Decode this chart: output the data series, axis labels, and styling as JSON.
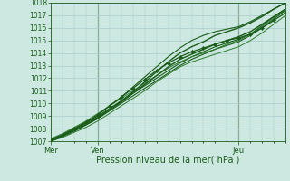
{
  "xlabel": "Pression niveau de la mer( hPa )",
  "ylim": [
    1007,
    1018
  ],
  "xlim": [
    0,
    120
  ],
  "yticks": [
    1007,
    1008,
    1009,
    1010,
    1011,
    1012,
    1013,
    1014,
    1015,
    1016,
    1017,
    1018
  ],
  "xtick_positions": [
    0,
    24,
    96
  ],
  "xtick_labels": [
    "Mer",
    "Ven",
    "Jeu"
  ],
  "vline_positions": [
    24,
    96
  ],
  "bg_color": "#cce8e0",
  "grid_color": "#aacccc",
  "line_color_dark": "#1a5c1a",
  "line_color_mid": "#2d7a2d",
  "series": [
    {
      "x": [
        0,
        6,
        12,
        18,
        24,
        30,
        36,
        42,
        48,
        54,
        60,
        66,
        72,
        78,
        84,
        90,
        96,
        102,
        108,
        114,
        120
      ],
      "y": [
        1007.0,
        1007.4,
        1007.8,
        1008.3,
        1008.8,
        1009.4,
        1010.0,
        1010.6,
        1011.2,
        1011.8,
        1012.4,
        1013.0,
        1013.5,
        1013.9,
        1014.3,
        1014.6,
        1014.9,
        1015.4,
        1016.0,
        1016.7,
        1017.4
      ],
      "color": "#1a5c1a",
      "lw": 0.8
    },
    {
      "x": [
        0,
        6,
        12,
        18,
        24,
        30,
        36,
        42,
        48,
        54,
        60,
        66,
        72,
        78,
        84,
        90,
        96,
        102,
        108,
        114,
        120
      ],
      "y": [
        1007.1,
        1007.5,
        1008.0,
        1008.5,
        1009.0,
        1009.6,
        1010.2,
        1010.8,
        1011.4,
        1012.0,
        1012.6,
        1013.2,
        1013.7,
        1014.1,
        1014.5,
        1014.8,
        1015.1,
        1015.5,
        1016.2,
        1016.9,
        1017.5
      ],
      "color": "#1a5c1a",
      "lw": 0.8
    },
    {
      "x": [
        0,
        6,
        12,
        18,
        24,
        30,
        36,
        42,
        48,
        54,
        60,
        66,
        72,
        78,
        84,
        90,
        96,
        102,
        108,
        114,
        120
      ],
      "y": [
        1007.0,
        1007.3,
        1007.7,
        1008.1,
        1008.6,
        1009.2,
        1009.8,
        1010.4,
        1011.0,
        1011.7,
        1012.3,
        1012.9,
        1013.3,
        1013.6,
        1013.9,
        1014.2,
        1014.5,
        1015.0,
        1015.6,
        1016.3,
        1017.0
      ],
      "color": "#2d7a2d",
      "lw": 0.7
    },
    {
      "x": [
        0,
        6,
        12,
        18,
        24,
        30,
        36,
        42,
        48,
        54,
        60,
        66,
        72,
        78,
        84,
        90,
        96,
        102,
        108,
        114,
        120
      ],
      "y": [
        1007.2,
        1007.6,
        1008.1,
        1008.6,
        1009.2,
        1009.8,
        1010.4,
        1011.0,
        1011.6,
        1012.2,
        1012.8,
        1013.3,
        1013.7,
        1014.0,
        1014.3,
        1014.7,
        1015.0,
        1015.5,
        1016.1,
        1016.8,
        1017.4
      ],
      "color": "#2d7a2d",
      "lw": 0.7
    },
    {
      "x": [
        0,
        6,
        12,
        18,
        24,
        30,
        36,
        42,
        48,
        54,
        60,
        66,
        72,
        78,
        84,
        90,
        96,
        102,
        108,
        114,
        120
      ],
      "y": [
        1007.0,
        1007.4,
        1007.8,
        1008.3,
        1008.8,
        1009.5,
        1010.2,
        1010.9,
        1011.7,
        1012.5,
        1013.3,
        1014.0,
        1014.5,
        1014.9,
        1015.4,
        1015.7,
        1016.0,
        1016.4,
        1016.9,
        1017.5,
        1018.0
      ],
      "color": "#1a5c1a",
      "lw": 1.0
    },
    {
      "x": [
        0,
        6,
        12,
        18,
        24,
        30,
        36,
        42,
        48,
        54,
        60,
        66,
        72,
        78,
        84,
        90,
        96,
        102,
        108,
        114,
        120
      ],
      "y": [
        1007.1,
        1007.5,
        1007.9,
        1008.4,
        1008.9,
        1009.5,
        1010.1,
        1010.8,
        1011.5,
        1012.2,
        1012.9,
        1013.5,
        1013.9,
        1014.3,
        1014.7,
        1015.0,
        1015.3,
        1015.7,
        1016.3,
        1016.9,
        1017.5
      ],
      "color": "#1a5c1a",
      "lw": 1.0
    }
  ],
  "marker_series_x": [
    0,
    6,
    12,
    18,
    24,
    30,
    36,
    42,
    48,
    54,
    60,
    66,
    72,
    78,
    84,
    90,
    96,
    102,
    108,
    114,
    120
  ],
  "marker_series_y": [
    1007.1,
    1007.5,
    1008.0,
    1008.5,
    1009.1,
    1009.8,
    1010.5,
    1011.2,
    1011.9,
    1012.6,
    1013.2,
    1013.7,
    1014.1,
    1014.4,
    1014.7,
    1015.0,
    1015.2,
    1015.5,
    1016.0,
    1016.6,
    1017.2
  ],
  "upper_line_x": [
    0,
    6,
    12,
    18,
    24,
    30,
    36,
    42,
    48,
    54,
    60,
    66,
    72,
    78,
    84,
    90,
    96,
    102,
    108,
    114,
    120
  ],
  "upper_line_y": [
    1007.1,
    1007.5,
    1008.0,
    1008.5,
    1009.1,
    1009.8,
    1010.5,
    1011.3,
    1012.1,
    1012.9,
    1013.7,
    1014.4,
    1015.0,
    1015.4,
    1015.7,
    1015.9,
    1016.1,
    1016.5,
    1017.0,
    1017.5,
    1018.0
  ]
}
